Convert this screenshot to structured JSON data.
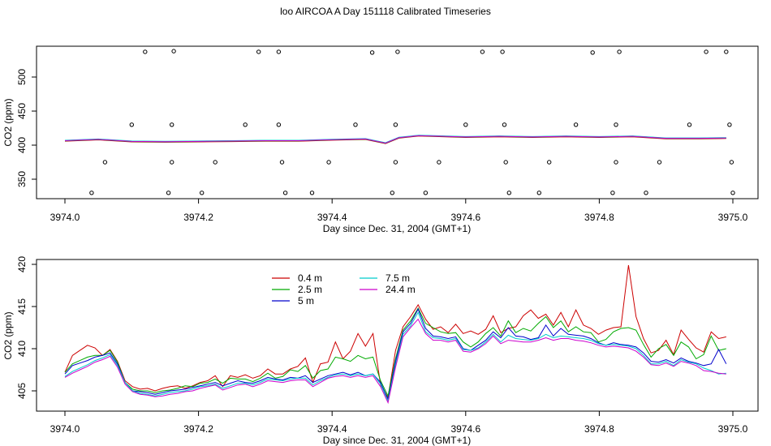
{
  "title": "loo AIRCOA A  Day 151118  Calibrated Timeseries",
  "chart_data": [
    {
      "type": "line",
      "xlabel": "Day since Dec. 31, 2004 (GMT+1)",
      "ylabel": "CO2 (ppm)",
      "xlim": [
        3973.96,
        3975.04
      ],
      "ylim": [
        325,
        545
      ],
      "xticks": [
        "3974.0",
        "3974.2",
        "3974.4",
        "3974.6",
        "3974.8",
        "3975.0"
      ],
      "yticks": [
        "350",
        "400",
        "450",
        "500"
      ],
      "series_colors": [
        "#cc0000",
        "#00aa00",
        "#0000cc",
        "#00cccc",
        "#cc00cc"
      ],
      "main_line": [
        [
          3974.0,
          406.5
        ],
        [
          3974.05,
          408.5
        ],
        [
          3974.1,
          405.5
        ],
        [
          3974.15,
          405.0
        ],
        [
          3974.2,
          405.5
        ],
        [
          3974.25,
          406.0
        ],
        [
          3974.3,
          406.5
        ],
        [
          3974.35,
          406.5
        ],
        [
          3974.4,
          408.0
        ],
        [
          3974.45,
          409.0
        ],
        [
          3974.48,
          403.0
        ],
        [
          3974.5,
          411.0
        ],
        [
          3974.53,
          414.0
        ],
        [
          3974.6,
          412.0
        ],
        [
          3974.65,
          413.0
        ],
        [
          3974.7,
          412.0
        ],
        [
          3974.75,
          413.0
        ],
        [
          3974.8,
          412.0
        ],
        [
          3974.85,
          413.0
        ],
        [
          3974.9,
          410.0
        ],
        [
          3974.95,
          410.0
        ],
        [
          3974.99,
          410.5
        ]
      ],
      "circles": [
        [
          3974.04,
          330
        ],
        [
          3974.06,
          375
        ],
        [
          3974.1,
          430
        ],
        [
          3974.12,
          537
        ],
        [
          3974.155,
          330
        ],
        [
          3974.16,
          375
        ],
        [
          3974.16,
          430
        ],
        [
          3974.163,
          538
        ],
        [
          3974.205,
          330
        ],
        [
          3974.225,
          375
        ],
        [
          3974.27,
          430
        ],
        [
          3974.29,
          537
        ],
        [
          3974.32,
          537
        ],
        [
          3974.32,
          430
        ],
        [
          3974.325,
          375
        ],
        [
          3974.33,
          330
        ],
        [
          3974.37,
          330
        ],
        [
          3974.395,
          375
        ],
        [
          3974.435,
          430
        ],
        [
          3974.46,
          536
        ],
        [
          3974.49,
          330
        ],
        [
          3974.495,
          375
        ],
        [
          3974.495,
          430
        ],
        [
          3974.498,
          537
        ],
        [
          3974.54,
          330
        ],
        [
          3974.56,
          375
        ],
        [
          3974.6,
          430
        ],
        [
          3974.625,
          537
        ],
        [
          3974.655,
          537
        ],
        [
          3974.658,
          430
        ],
        [
          3974.66,
          375
        ],
        [
          3974.665,
          330
        ],
        [
          3974.71,
          330
        ],
        [
          3974.725,
          375
        ],
        [
          3974.765,
          430
        ],
        [
          3974.79,
          536
        ],
        [
          3974.82,
          330
        ],
        [
          3974.825,
          375
        ],
        [
          3974.825,
          430
        ],
        [
          3974.83,
          537
        ],
        [
          3974.87,
          330
        ],
        [
          3974.89,
          375
        ],
        [
          3974.935,
          430
        ],
        [
          3974.96,
          537
        ],
        [
          3974.99,
          537
        ],
        [
          3974.995,
          430
        ],
        [
          3974.998,
          375
        ],
        [
          3975.0,
          330
        ]
      ]
    },
    {
      "type": "line",
      "xlabel": "Day since Dec. 31, 2004 (GMT+1)",
      "ylabel": "CO2 (ppm)",
      "xlim": [
        3973.96,
        3975.04
      ],
      "ylim": [
        403.0,
        420.5
      ],
      "xticks": [
        "3974.0",
        "3974.2",
        "3974.4",
        "3974.6",
        "3974.8",
        "3975.0"
      ],
      "yticks": [
        "405",
        "410",
        "415",
        "420"
      ],
      "legend_position": "top-center",
      "series": [
        {
          "name": "0.4 m",
          "color": "#cc0000",
          "values": [
            407.2,
            409.2,
            409.8,
            410.4,
            410.1,
            409.2,
            409.9,
            408.5,
            406.2,
            405.5,
            405.2,
            405.3,
            405.0,
            405.3,
            405.5,
            405.6,
            405.3,
            405.6,
            406.0,
            406.2,
            406.8,
            405.5,
            406.8,
            406.6,
            406.9,
            406.5,
            406.8,
            407.6,
            407.0,
            407.0,
            407.6,
            407.9,
            408.9,
            406.0,
            408.2,
            408.4,
            410.8,
            408.8,
            409.7,
            411.8,
            410.3,
            411.8,
            405.7,
            404.2,
            409.8,
            412.6,
            413.8,
            415.2,
            413.5,
            412.3,
            412.6,
            411.9,
            412.9,
            411.8,
            412.1,
            411.7,
            412.3,
            413.9,
            411.9,
            412.4,
            412.6,
            413.9,
            414.6,
            413.6,
            414.1,
            412.8,
            414.3,
            412.6,
            414.6,
            412.8,
            412.4,
            411.7,
            412.2,
            412.5,
            412.6,
            419.9,
            413.8,
            411.2,
            409.5,
            409.8,
            411.0,
            409.3,
            412.2,
            411.1,
            410.1,
            409.6,
            412.0,
            411.2,
            411.4
          ]
        },
        {
          "name": "2.5 m",
          "color": "#00aa00",
          "values": [
            407.2,
            408.2,
            408.6,
            409.0,
            409.2,
            409.2,
            409.8,
            408.4,
            406.0,
            405.2,
            405.0,
            405.0,
            404.8,
            405.0,
            405.1,
            405.3,
            405.6,
            405.5,
            405.9,
            406.0,
            406.4,
            405.9,
            406.5,
            406.4,
            406.4,
            406.1,
            406.5,
            407.1,
            406.5,
            406.7,
            407.5,
            407.3,
            408.0,
            406.5,
            407.4,
            407.6,
            409.0,
            408.8,
            408.5,
            409.2,
            408.8,
            409.0,
            406.2,
            404.4,
            408.8,
            412.2,
            413.3,
            414.8,
            413.0,
            412.5,
            412.0,
            411.8,
            411.9,
            410.8,
            410.2,
            410.8,
            411.8,
            412.5,
            411.5,
            413.3,
            411.9,
            412.4,
            412.1,
            413.0,
            413.8,
            412.5,
            413.3,
            412.0,
            412.6,
            412.0,
            411.9,
            410.8,
            411.1,
            412.0,
            412.4,
            412.5,
            412.2,
            410.5,
            409.0,
            410.0,
            410.5,
            409.2,
            410.8,
            410.2,
            408.8,
            409.3,
            411.5,
            409.8,
            410.0
          ]
        },
        {
          "name": "5 m",
          "color": "#0000cc",
          "values": [
            407.0,
            408.0,
            408.3,
            408.6,
            409.0,
            409.2,
            409.5,
            408.2,
            406.0,
            405.0,
            404.9,
            404.8,
            404.6,
            404.8,
            405.0,
            405.1,
            405.2,
            405.4,
            405.6,
            405.8,
            406.0,
            405.6,
            405.9,
            406.2,
            406.0,
            405.9,
            406.2,
            406.6,
            406.4,
            406.3,
            406.6,
            406.5,
            406.8,
            406.0,
            406.4,
            406.8,
            407.0,
            407.2,
            406.9,
            407.2,
            406.8,
            407.0,
            406.0,
            404.0,
            408.5,
            412.0,
            413.0,
            414.7,
            412.4,
            411.5,
            411.4,
            411.2,
            411.4,
            410.0,
            409.8,
            410.4,
            411.0,
            412.0,
            411.3,
            412.5,
            411.5,
            411.4,
            411.1,
            411.3,
            412.8,
            411.5,
            412.4,
            411.7,
            411.6,
            411.5,
            411.2,
            410.7,
            410.4,
            410.7,
            410.5,
            410.4,
            410.2,
            409.5,
            408.5,
            408.4,
            408.7,
            408.3,
            408.9,
            408.5,
            408.3,
            408.0,
            408.2,
            409.9,
            408.2
          ]
        },
        {
          "name": "7.5 m",
          "color": "#00cccc",
          "values": [
            406.7,
            407.3,
            407.7,
            408.1,
            408.6,
            408.9,
            409.3,
            408.0,
            406.0,
            405.0,
            404.7,
            404.6,
            404.4,
            404.6,
            404.8,
            404.9,
            405.0,
            405.2,
            405.5,
            405.6,
            405.8,
            405.3,
            405.6,
            405.9,
            405.9,
            405.7,
            406.0,
            406.4,
            406.3,
            406.2,
            406.4,
            406.5,
            406.5,
            405.7,
            406.2,
            406.6,
            406.9,
            407.0,
            406.8,
            407.0,
            406.8,
            407.0,
            405.8,
            403.8,
            408.1,
            411.7,
            412.7,
            414.3,
            412.0,
            411.3,
            411.2,
            411.0,
            411.2,
            409.9,
            409.8,
            410.1,
            410.8,
            411.7,
            410.8,
            411.6,
            411.2,
            411.1,
            411.0,
            411.2,
            411.7,
            411.3,
            411.5,
            411.4,
            411.3,
            411.2,
            411.0,
            410.6,
            410.4,
            410.5,
            410.4,
            410.3,
            410.0,
            409.2,
            408.2,
            408.2,
            408.5,
            408.0,
            408.7,
            408.4,
            408.2,
            407.7,
            407.4,
            407.0,
            407.1
          ]
        },
        {
          "name": "24.4 m",
          "color": "#cc00cc",
          "values": [
            406.6,
            407.1,
            407.5,
            407.9,
            408.4,
            408.7,
            409.1,
            407.8,
            405.8,
            404.9,
            404.6,
            404.5,
            404.3,
            404.4,
            404.6,
            404.7,
            404.9,
            405.0,
            405.3,
            405.5,
            405.7,
            405.1,
            405.4,
            405.7,
            405.8,
            405.5,
            405.8,
            406.2,
            406.1,
            406.0,
            406.2,
            406.3,
            406.3,
            405.5,
            406.0,
            406.5,
            406.7,
            406.8,
            406.6,
            406.8,
            406.6,
            406.8,
            405.5,
            403.6,
            407.8,
            411.4,
            412.5,
            413.5,
            411.8,
            411.0,
            411.0,
            410.8,
            411.0,
            409.7,
            409.6,
            410.0,
            410.6,
            411.5,
            410.6,
            411.0,
            410.9,
            410.8,
            410.8,
            411.0,
            411.3,
            411.0,
            411.2,
            411.2,
            411.0,
            410.9,
            410.7,
            410.4,
            410.2,
            410.3,
            410.2,
            410.1,
            409.7,
            409.0,
            408.1,
            408.0,
            408.3,
            407.9,
            408.5,
            408.3,
            408.0,
            407.4,
            407.3,
            407.1,
            407.0
          ]
        }
      ]
    }
  ]
}
